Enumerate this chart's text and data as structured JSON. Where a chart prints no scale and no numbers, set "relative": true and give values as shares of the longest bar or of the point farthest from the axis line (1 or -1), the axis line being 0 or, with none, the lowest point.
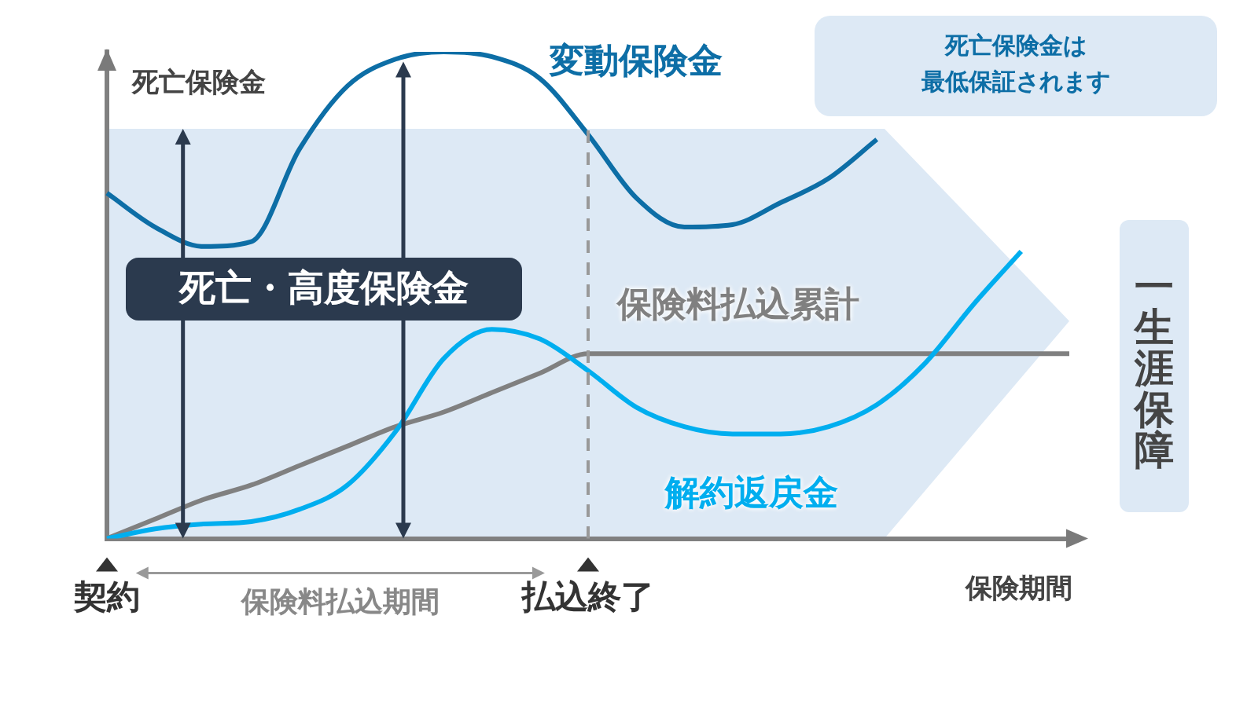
{
  "chart_data": {
    "type": "line",
    "relative": true,
    "ylabel": "死亡保険金",
    "xlabel": "保険期間",
    "categories": [
      "契約",
      null,
      null,
      null,
      null,
      null,
      null,
      null,
      null,
      null,
      "払込終了",
      null,
      null,
      null,
      null,
      null,
      null,
      null,
      null,
      null,
      null
    ],
    "grid": false,
    "legend": false,
    "marker": "none",
    "line_style": "solid",
    "series": [
      {
        "name": "変動保険金",
        "color": "#0d6ea6",
        "values": [
          0.71,
          0.64,
          0.6,
          0.61,
          0.8,
          0.93,
          0.985,
          1,
          0.99,
          0.945,
          0.83,
          0.7,
          0.64,
          0.645,
          0.69,
          0.74,
          0.82,
          null,
          null,
          null,
          null
        ]
      },
      {
        "name": "解約返戻金",
        "color": "#00aeef",
        "values": [
          0,
          0.02,
          0.03,
          0.035,
          0.06,
          0.11,
          0.22,
          0.37,
          0.43,
          0.41,
          0.345,
          0.27,
          0.23,
          0.215,
          0.215,
          0.23,
          0.275,
          0.36,
          0.48,
          0.59,
          null
        ]
      },
      {
        "name": "保険料払込累計",
        "color": "#808080",
        "values": [
          0,
          0.04,
          0.08,
          0.11,
          0.15,
          0.19,
          0.23,
          0.26,
          0.3,
          0.34,
          0.38,
          0.38,
          0.38,
          0.38,
          0.38,
          0.38,
          0.38,
          0.38,
          0.38,
          0.38,
          0.38
        ]
      }
    ],
    "ref_lines": [
      {
        "axis": "x",
        "value": "払込終了",
        "color": "#999999",
        "line_style": "dashed"
      }
    ],
    "annotations": [
      "死亡・高度保険金",
      "死亡保険金は",
      "最低保証されます",
      "一生涯保障",
      "保険料払込期間"
    ]
  }
}
